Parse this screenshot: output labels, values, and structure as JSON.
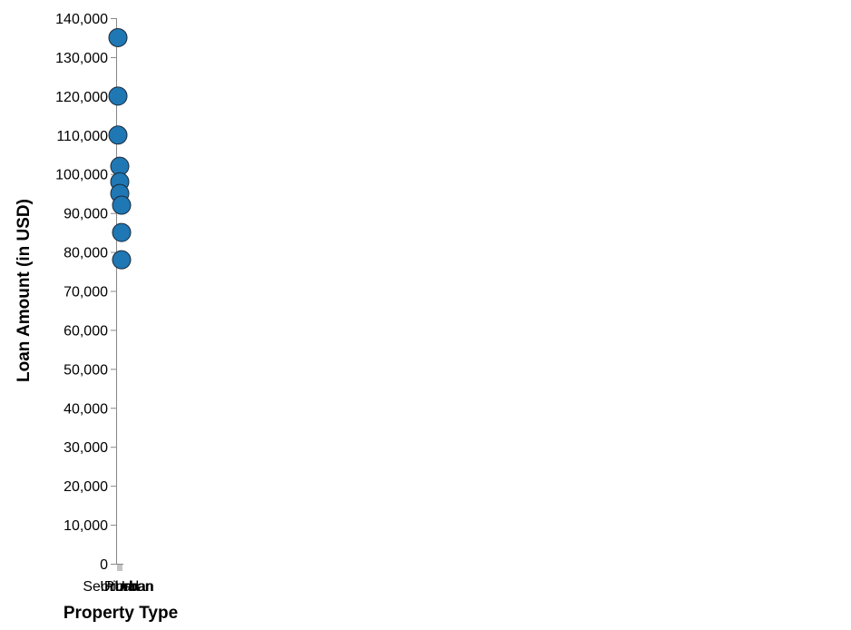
{
  "chart_data": {
    "type": "scatter",
    "title": "",
    "xlabel": "Property Type",
    "ylabel": "Loan Amount (in USD)",
    "x_categories": [
      "Semiurban",
      "Urban",
      "Rural",
      "Urban"
    ],
    "ylim": [
      0,
      140000
    ],
    "y_ticks": [
      0,
      10000,
      20000,
      30000,
      40000,
      50000,
      60000,
      70000,
      80000,
      90000,
      100000,
      110000,
      120000,
      130000,
      140000
    ],
    "y_tick_labels": [
      "0",
      "10,000",
      "20,000",
      "30,000",
      "40,000",
      "50,000",
      "60,000",
      "70,000",
      "80,000",
      "90,000",
      "100,000",
      "110,000",
      "120,000",
      "130,000",
      "140,000"
    ],
    "grid": false,
    "legend": "none",
    "point_color": "#1f77b4",
    "points": [
      {
        "x": "Semiurban",
        "y": 135000
      },
      {
        "x": "Semiurban",
        "y": 120000
      },
      {
        "x": "Semiurban",
        "y": 110000
      },
      {
        "x": "Urban",
        "y": 102000
      },
      {
        "x": "Urban",
        "y": 98000
      },
      {
        "x": "Urban",
        "y": 95000
      },
      {
        "x": "Rural",
        "y": 92000
      },
      {
        "x": "Rural",
        "y": 85000
      },
      {
        "x": "Rural",
        "y": 78000
      }
    ]
  }
}
